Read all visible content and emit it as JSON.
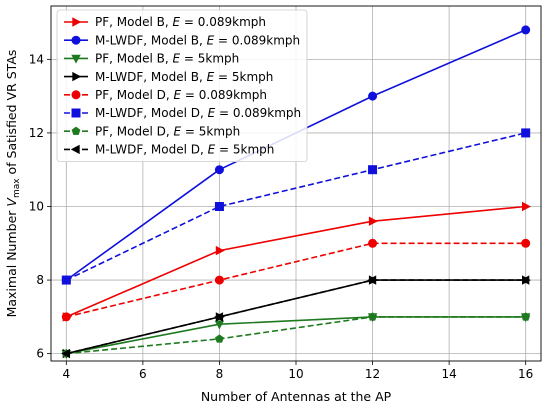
{
  "chart_data": {
    "type": "line",
    "xlabel": "Number of Antennas at the AP",
    "ylabel_prefix": "Maximal Number ",
    "ylabel_var": "V",
    "ylabel_sub": "max",
    "ylabel_suffix": " of Satisfied VR STAs",
    "xlim": [
      3.6,
      16.4
    ],
    "ylim": [
      5.8,
      15.45
    ],
    "xticks": [
      4,
      6,
      8,
      10,
      12,
      14,
      16
    ],
    "yticks": [
      6,
      8,
      10,
      12,
      14
    ],
    "grid": true,
    "legend_position": "top-left",
    "series": [
      {
        "name": "PF, Model B, E = 0.089kmph",
        "legend_pre": "PF, Model B, ",
        "legend_post": " = 0.089kmph",
        "color": "#ee0000",
        "dash": "solid",
        "marker": "triangle-right",
        "x": [
          4,
          8,
          12,
          16
        ],
        "y": [
          7,
          8.8,
          9.6,
          10
        ]
      },
      {
        "name": "M-LWDF, Model B, E = 0.089kmph",
        "legend_pre": "M-LWDF, Model B, ",
        "legend_post": " = 0.089kmph",
        "color": "#1010dd",
        "dash": "solid",
        "marker": "circle",
        "x": [
          4,
          8,
          12,
          16
        ],
        "y": [
          8,
          11,
          13,
          14.8
        ]
      },
      {
        "name": "PF, Model B, E = 5kmph",
        "legend_pre": "PF, Model B, ",
        "legend_post": " = 5kmph",
        "color": "#1f7a1f",
        "dash": "solid",
        "marker": "triangle-down",
        "x": [
          4,
          8,
          12,
          16
        ],
        "y": [
          6,
          6.8,
          7,
          7
        ]
      },
      {
        "name": "M-LWDF, Model B, E = 5kmph",
        "legend_pre": "M-LWDF, Model B, ",
        "legend_post": " = 5kmph",
        "color": "#000000",
        "dash": "solid",
        "marker": "triangle-right",
        "x": [
          4,
          8,
          12,
          16
        ],
        "y": [
          6,
          7,
          8,
          8
        ]
      },
      {
        "name": "PF, Model D, E = 0.089kmph",
        "legend_pre": "PF, Model D, ",
        "legend_post": " = 0.089kmph",
        "color": "#ee0000",
        "dash": "dashed",
        "marker": "circle",
        "x": [
          4,
          8,
          12,
          16
        ],
        "y": [
          7,
          8,
          9,
          9
        ]
      },
      {
        "name": "M-LWDF, Model D, E = 0.089kmph",
        "legend_pre": "M-LWDF, Model D, ",
        "legend_post": " = 0.089kmph",
        "color": "#1010dd",
        "dash": "dashed",
        "marker": "square",
        "x": [
          4,
          8,
          12,
          16
        ],
        "y": [
          8,
          10,
          11,
          12
        ]
      },
      {
        "name": "PF, Model D, E = 5kmph",
        "legend_pre": "PF, Model D, ",
        "legend_post": " = 5kmph",
        "color": "#1f7a1f",
        "dash": "dashed",
        "marker": "pentagon",
        "x": [
          4,
          8,
          12,
          16
        ],
        "y": [
          6,
          6.4,
          7,
          7
        ]
      },
      {
        "name": "M-LWDF, Model D, E = 5kmph",
        "legend_pre": "M-LWDF, Model D, ",
        "legend_post": " = 5kmph",
        "color": "#000000",
        "dash": "dashed",
        "marker": "triangle-left",
        "x": [
          4,
          8,
          12,
          16
        ],
        "y": [
          6,
          7,
          8,
          8
        ]
      }
    ]
  }
}
